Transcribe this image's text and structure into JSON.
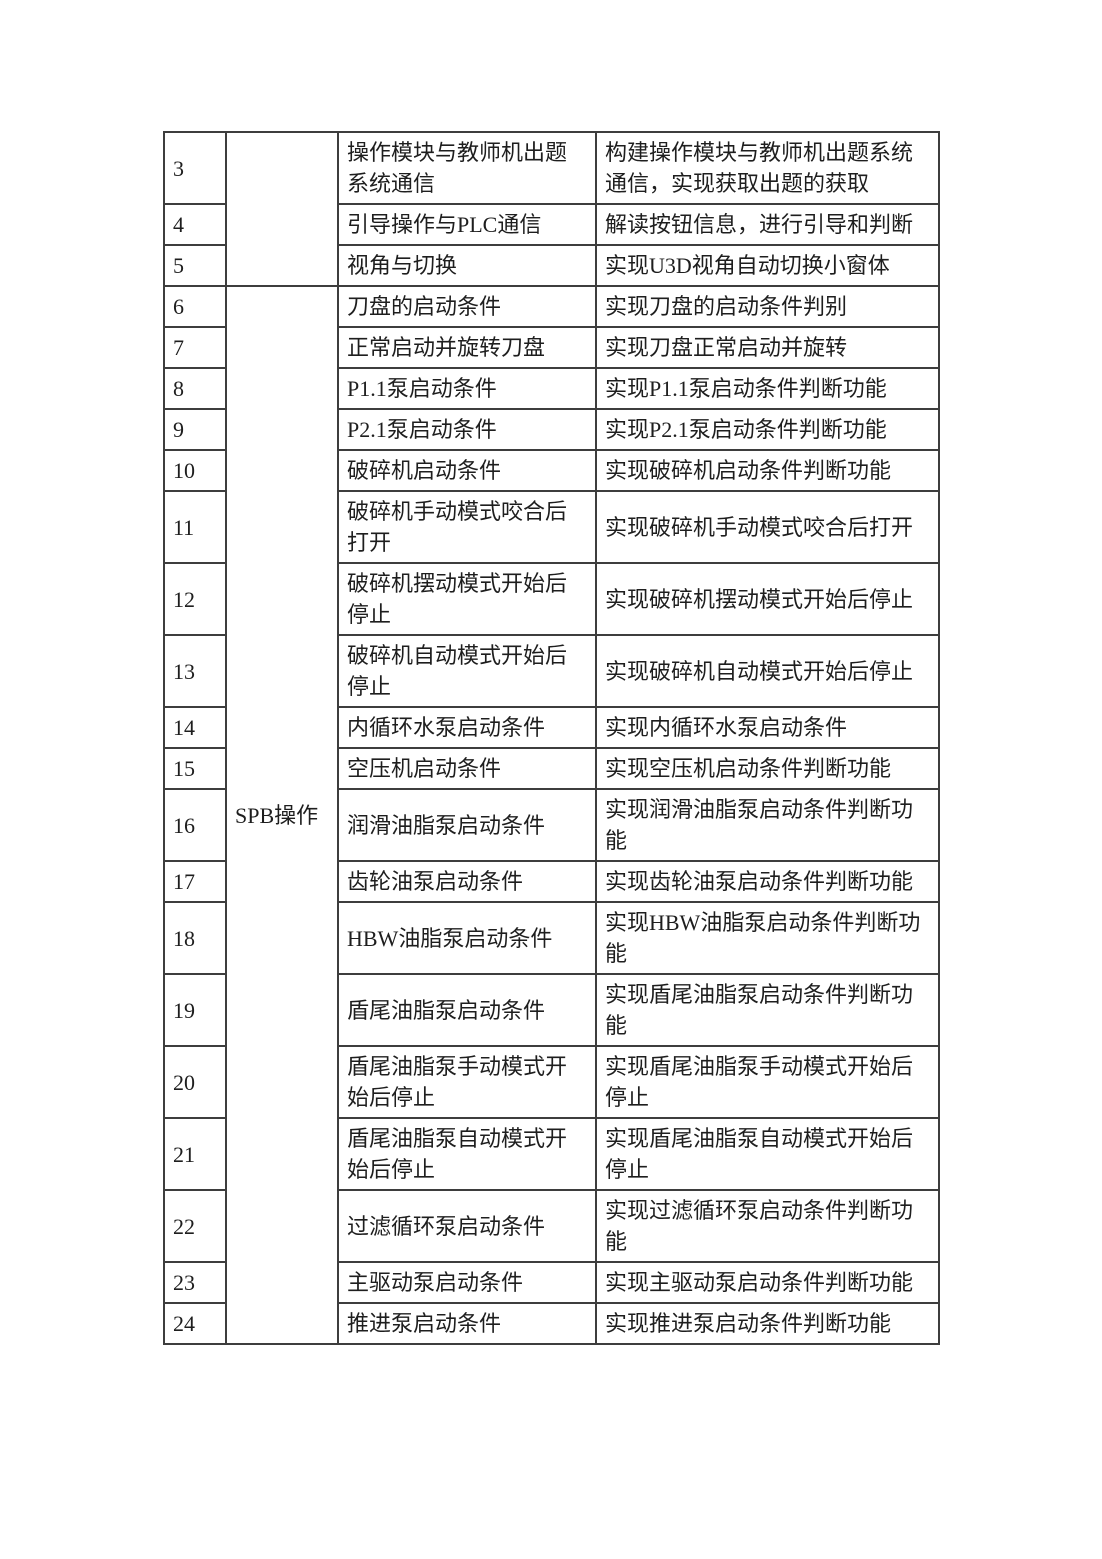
{
  "page": {
    "background": "#ffffff",
    "text_color": "#1e1e1e",
    "border_color": "#3d3d3d"
  },
  "table": {
    "columns": [
      "number",
      "category",
      "task",
      "description"
    ],
    "groups": [
      {
        "category": "",
        "rows": [
          {
            "num": "3",
            "task": "操作模块与教师机出题\n系统通信",
            "desc": "构建操作模块与教师机出题系统\n通信，实现获取出题的获取"
          },
          {
            "num": "4",
            "task": "引导操作与PLC通信",
            "desc": "解读按钮信息，进行引导和判断"
          },
          {
            "num": "5",
            "task": "视角与切换",
            "desc": "实现U3D视角自动切换小窗体"
          }
        ]
      },
      {
        "category": "SPB操作",
        "rows": [
          {
            "num": "6",
            "task": "刀盘的启动条件",
            "desc": "实现刀盘的启动条件判别"
          },
          {
            "num": "7",
            "task": "正常启动并旋转刀盘",
            "desc": "实现刀盘正常启动并旋转"
          },
          {
            "num": "8",
            "task": "P1.1泵启动条件",
            "desc": "实现P1.1泵启动条件判断功能"
          },
          {
            "num": "9",
            "task": "P2.1泵启动条件",
            "desc": "实现P2.1泵启动条件判断功能"
          },
          {
            "num": "10",
            "task": "破碎机启动条件",
            "desc": "实现破碎机启动条件判断功能"
          },
          {
            "num": "11",
            "task": "破碎机手动模式咬合后\n打开",
            "desc": "实现破碎机手动模式咬合后打开"
          },
          {
            "num": "12",
            "task": "破碎机摆动模式开始后\n停止",
            "desc": "实现破碎机摆动模式开始后停止"
          },
          {
            "num": "13",
            "task": "破碎机自动模式开始后\n停止",
            "desc": "实现破碎机自动模式开始后停止"
          },
          {
            "num": "14",
            "task": "内循环水泵启动条件",
            "desc": "实现内循环水泵启动条件"
          },
          {
            "num": "15",
            "task": "空压机启动条件",
            "desc": "实现空压机启动条件判断功能"
          },
          {
            "num": "16",
            "task": "润滑油脂泵启动条件",
            "desc": "实现润滑油脂泵启动条件判断功\n能"
          },
          {
            "num": "17",
            "task": "齿轮油泵启动条件",
            "desc": "实现齿轮油泵启动条件判断功能"
          },
          {
            "num": "18",
            "task": "HBW油脂泵启动条件",
            "desc": "实现HBW油脂泵启动条件判断功\n能"
          },
          {
            "num": "19",
            "task": "盾尾油脂泵启动条件",
            "desc": "实现盾尾油脂泵启动条件判断功\n能"
          },
          {
            "num": "20",
            "task": "盾尾油脂泵手动模式开\n始后停止",
            "desc": "实现盾尾油脂泵手动模式开始后\n停止"
          },
          {
            "num": "21",
            "task": "盾尾油脂泵自动模式开\n始后停止",
            "desc": "实现盾尾油脂泵自动模式开始后\n停止"
          },
          {
            "num": "22",
            "task": "过滤循环泵启动条件",
            "desc": "实现过滤循环泵启动条件判断功\n能"
          },
          {
            "num": "23",
            "task": "主驱动泵启动条件",
            "desc": "实现主驱动泵启动条件判断功能"
          },
          {
            "num": "24",
            "task": "推进泵启动条件",
            "desc": "实现推进泵启动条件判断功能"
          }
        ]
      }
    ]
  }
}
